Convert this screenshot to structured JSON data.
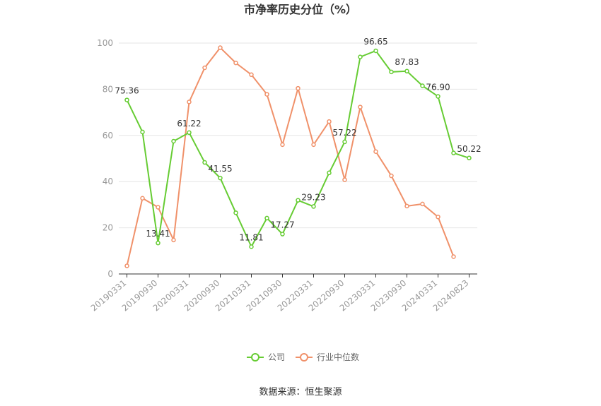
{
  "chart_data": {
    "type": "line",
    "title": "市净率历史分位（%）",
    "xlabel": "",
    "ylabel": "",
    "ylim": [
      0,
      100
    ],
    "yticks": [
      0,
      20,
      40,
      60,
      80,
      100
    ],
    "grid": true,
    "legend_position": "bottom",
    "x": [
      "20190331",
      "20190630",
      "20190930",
      "20191231",
      "20200331",
      "20200630",
      "20200930",
      "20201231",
      "20210331",
      "20210630",
      "20210930",
      "20211231",
      "20220331",
      "20220630",
      "20220930",
      "20221231",
      "20230331",
      "20230630",
      "20230930",
      "20231231",
      "20240331",
      "20240630",
      "20240823"
    ],
    "x_tick_labels": [
      "20190331",
      "20190930",
      "20200331",
      "20200930",
      "20210331",
      "20210930",
      "20220331",
      "20220930",
      "20230331",
      "20230930",
      "20240331",
      "20240823"
    ],
    "series": [
      {
        "name": "公司",
        "color": "#66cc33",
        "values": [
          75.36,
          61.5,
          13.41,
          57.5,
          61.22,
          48.3,
          41.55,
          26.5,
          11.81,
          24.2,
          17.27,
          31.9,
          29.23,
          43.8,
          57.22,
          94.0,
          96.65,
          87.5,
          87.83,
          81.5,
          76.9,
          52.4,
          50.22
        ],
        "labels": [
          "75.36",
          "",
          "13.41",
          "",
          "61.22",
          "",
          "41.55",
          "",
          "11.81",
          "",
          "17.27",
          "",
          "29.23",
          "",
          "57.22",
          "",
          "96.65",
          "",
          "87.83",
          "",
          "76.90",
          "",
          "50.22"
        ]
      },
      {
        "name": "行业中位数",
        "color": "#f0916a",
        "values": [
          3.5,
          32.8,
          28.9,
          14.7,
          74.5,
          89.3,
          98.0,
          91.4,
          86.3,
          77.8,
          56.0,
          80.4,
          56.0,
          66.0,
          40.8,
          72.3,
          53.0,
          42.5,
          29.4,
          30.3,
          24.7,
          7.5,
          null
        ]
      }
    ]
  },
  "source": "数据来源：恒生聚源"
}
